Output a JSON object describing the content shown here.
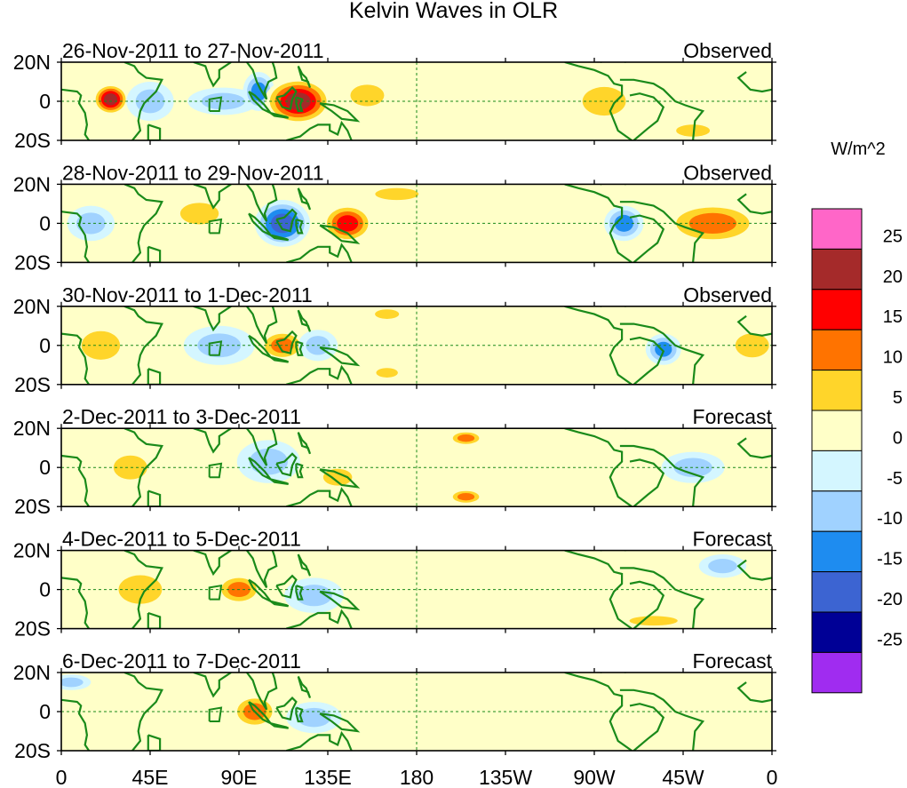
{
  "chart_data": {
    "type": "heatmap",
    "title": "Kelvin Waves in OLR",
    "units": "W/m^2",
    "x_range_deg": [
      0,
      360
    ],
    "y_range_deg": [
      -20,
      20
    ],
    "x_ticks": [
      {
        "deg": 0,
        "label": "0"
      },
      {
        "deg": 45,
        "label": "45E"
      },
      {
        "deg": 90,
        "label": "90E"
      },
      {
        "deg": 135,
        "label": "135E"
      },
      {
        "deg": 180,
        "label": "180"
      },
      {
        "deg": 225,
        "label": "135W"
      },
      {
        "deg": 270,
        "label": "90W"
      },
      {
        "deg": 315,
        "label": "45W"
      },
      {
        "deg": 360,
        "label": "0"
      }
    ],
    "y_ticks": [
      {
        "deg": 20,
        "label": "20N"
      },
      {
        "deg": 0,
        "label": "0"
      },
      {
        "deg": -20,
        "label": "20S"
      }
    ],
    "colorbar": {
      "colors": [
        "#ff66c8",
        "#a52a2a",
        "#ff0000",
        "#ff7300",
        "#ffd52a",
        "#ffffc8",
        "#d4f6ff",
        "#a0d2ff",
        "#1e8cf0",
        "#3c64d2",
        "#000096",
        "#a02cf0"
      ],
      "labels": [
        "25",
        "20",
        "15",
        "10",
        "5",
        "0",
        "-5",
        "-10",
        "-15",
        "-20",
        "-25"
      ]
    },
    "panels": [
      {
        "period": "26-Nov-2011 to 27-Nov-2011",
        "kind": "Observed",
        "anomalies": [
          {
            "lon": 25,
            "lat": 1,
            "rlon": 9,
            "rlat": 8,
            "value": 22
          },
          {
            "lon": 45,
            "lat": 0,
            "rlon": 12,
            "rlat": 10,
            "value": -8
          },
          {
            "lon": 82,
            "lat": 0,
            "rlon": 18,
            "rlat": 7,
            "value": -8
          },
          {
            "lon": 100,
            "lat": 5,
            "rlon": 8,
            "rlat": 10,
            "value": -12
          },
          {
            "lon": 120,
            "lat": 0,
            "rlon": 17,
            "rlat": 12,
            "value": 22
          },
          {
            "lon": 155,
            "lat": 3,
            "rlon": 14,
            "rlat": 9,
            "value": 7
          },
          {
            "lon": 275,
            "lat": 0,
            "rlon": 18,
            "rlat": 12,
            "value": 8
          },
          {
            "lon": 320,
            "lat": -15,
            "rlon": 14,
            "rlat": 5,
            "value": 9
          }
        ]
      },
      {
        "period": "28-Nov-2011 to 29-Nov-2011",
        "kind": "Observed",
        "anomalies": [
          {
            "lon": 15,
            "lat": 0,
            "rlon": 12,
            "rlat": 9,
            "value": -6
          },
          {
            "lon": 70,
            "lat": 5,
            "rlon": 16,
            "rlat": 9,
            "value": 6
          },
          {
            "lon": 112,
            "lat": 0,
            "rlon": 14,
            "rlat": 12,
            "value": -20
          },
          {
            "lon": 145,
            "lat": 0,
            "rlon": 13,
            "rlat": 10,
            "value": 20
          },
          {
            "lon": 170,
            "lat": 15,
            "rlon": 18,
            "rlat": 5,
            "value": 6
          },
          {
            "lon": 285,
            "lat": 0,
            "rlon": 10,
            "rlat": 9,
            "value": -13
          },
          {
            "lon": 330,
            "lat": 0,
            "rlon": 25,
            "rlat": 11,
            "value": 14
          }
        ]
      },
      {
        "period": "30-Nov-2011 to 1-Dec-2011",
        "kind": "Observed",
        "anomalies": [
          {
            "lon": 20,
            "lat": 0,
            "rlon": 16,
            "rlat": 12,
            "value": 7
          },
          {
            "lon": 80,
            "lat": 0,
            "rlon": 18,
            "rlat": 10,
            "value": -7
          },
          {
            "lon": 112,
            "lat": 0,
            "rlon": 12,
            "rlat": 8,
            "value": 13
          },
          {
            "lon": 130,
            "lat": 0,
            "rlon": 10,
            "rlat": 8,
            "value": -9
          },
          {
            "lon": 165,
            "lat": 16,
            "rlon": 10,
            "rlat": 4,
            "value": 10
          },
          {
            "lon": 165,
            "lat": -14,
            "rlon": 9,
            "rlat": 4,
            "value": 10
          },
          {
            "lon": 305,
            "lat": -2,
            "rlon": 9,
            "rlat": 8,
            "value": -13
          },
          {
            "lon": 350,
            "lat": 0,
            "rlon": 14,
            "rlat": 10,
            "value": 6
          }
        ]
      },
      {
        "period": "2-Dec-2011 to 3-Dec-2011",
        "kind": "Forecast",
        "anomalies": [
          {
            "lon": 35,
            "lat": 0,
            "rlon": 14,
            "rlat": 10,
            "value": 6
          },
          {
            "lon": 105,
            "lat": 3,
            "rlon": 16,
            "rlat": 11,
            "value": -9
          },
          {
            "lon": 140,
            "lat": -5,
            "rlon": 12,
            "rlat": 7,
            "value": 6
          },
          {
            "lon": 205,
            "lat": 15,
            "rlon": 9,
            "rlat": 4,
            "value": 12
          },
          {
            "lon": 205,
            "lat": -15,
            "rlon": 9,
            "rlat": 4,
            "value": 12
          },
          {
            "lon": 320,
            "lat": 0,
            "rlon": 16,
            "rlat": 8,
            "value": -6
          }
        ]
      },
      {
        "period": "4-Dec-2011 to 5-Dec-2011",
        "kind": "Forecast",
        "anomalies": [
          {
            "lon": 40,
            "lat": 0,
            "rlon": 18,
            "rlat": 12,
            "value": 6
          },
          {
            "lon": 90,
            "lat": 0,
            "rlon": 12,
            "rlat": 8,
            "value": 11
          },
          {
            "lon": 128,
            "lat": -3,
            "rlon": 15,
            "rlat": 9,
            "value": -9
          },
          {
            "lon": 335,
            "lat": 12,
            "rlon": 12,
            "rlat": 6,
            "value": -7
          },
          {
            "lon": 300,
            "lat": -16,
            "rlon": 20,
            "rlat": 4,
            "value": 6
          }
        ]
      },
      {
        "period": "6-Dec-2011 to 7-Dec-2011",
        "kind": "Forecast",
        "anomalies": [
          {
            "lon": 20,
            "lat": 0,
            "rlon": 14,
            "rlat": 10,
            "value": 5
          },
          {
            "lon": 98,
            "lat": 0,
            "rlon": 12,
            "rlat": 9,
            "value": 12
          },
          {
            "lon": 128,
            "lat": -3,
            "rlon": 14,
            "rlat": 8,
            "value": -8
          },
          {
            "lon": 5,
            "lat": 15,
            "rlon": 10,
            "rlat": 4,
            "value": -7
          }
        ]
      }
    ]
  }
}
